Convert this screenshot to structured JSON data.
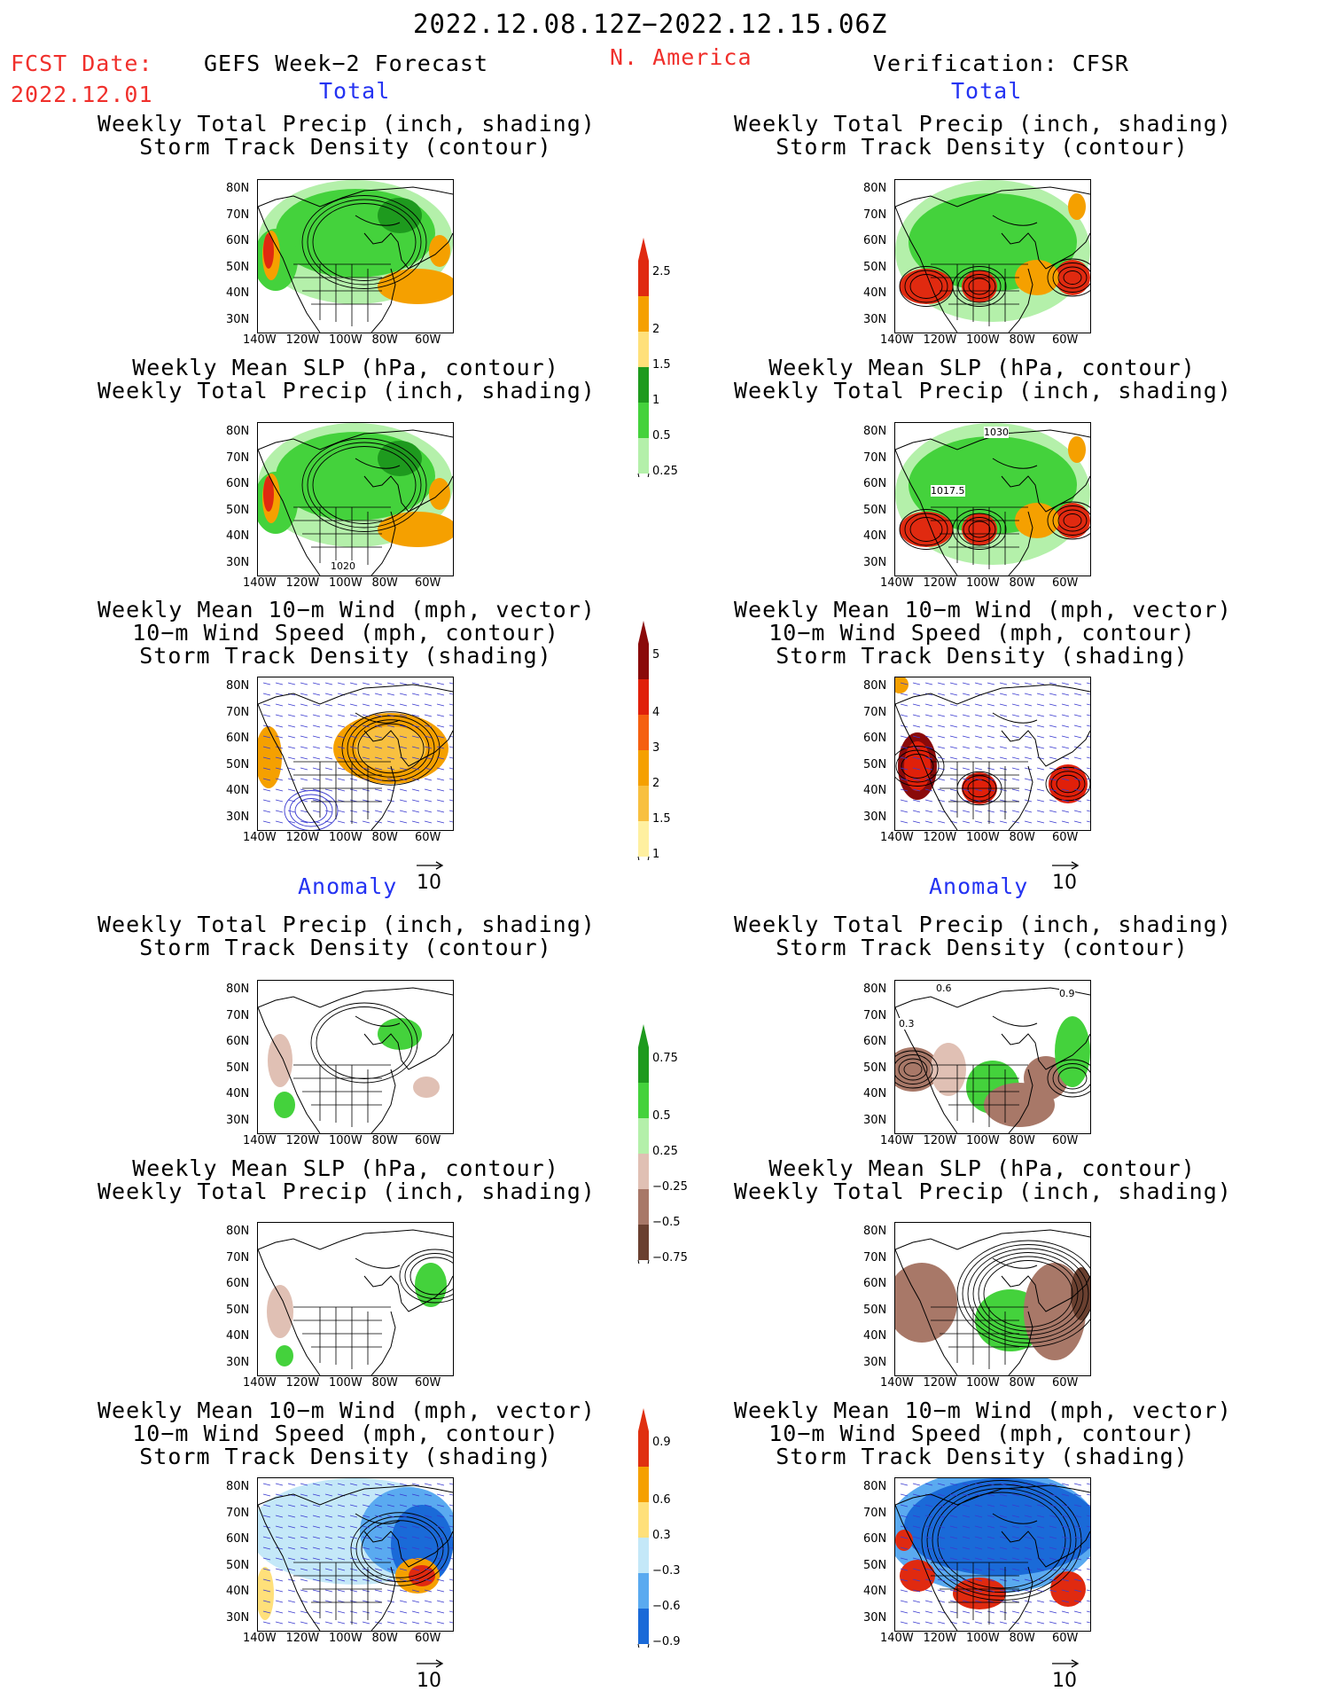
{
  "header": {
    "time_range": "2022.12.08.12Z−2022.12.15.06Z",
    "fcst_label": "FCST Date:",
    "fcst_date": "2022.12.01",
    "left_title": "GEFS Week−2 Forecast",
    "region": "N. America",
    "right_title": "Verification: CFSR",
    "total_label": "Total",
    "anomaly_label": "Anomaly"
  },
  "panels": {
    "precip_track": [
      "Weekly Total Precip (inch, shading)",
      "Storm Track Density (contour)"
    ],
    "slp_precip": [
      "Weekly Mean SLP (hPa, contour)",
      "Weekly Total Precip (inch, shading)"
    ],
    "wind_track": [
      "Weekly Mean 10−m Wind (mph, vector)",
      "10−m Wind Speed (mph, contour)",
      "Storm Track Density (shading)"
    ]
  },
  "axes": {
    "lat_labels": [
      "80N",
      "70N",
      "60N",
      "50N",
      "40N",
      "30N"
    ],
    "lon_labels": [
      "140W",
      "120W",
      "100W",
      "80W",
      "60W"
    ]
  },
  "map_annotations": {
    "fcst_slp_total": "1020",
    "cfsr_slp_total_a": "1030",
    "cfsr_slp_total_b": "1017.5",
    "cfsr_precip_anom_a": "0.6",
    "cfsr_precip_anom_b": "0.9",
    "cfsr_precip_anom_c": "0.3"
  },
  "vector_ref": "10",
  "colorbars": {
    "precip_total": [
      "2.5",
      "2",
      "1.5",
      "1",
      "0.5",
      "0.25"
    ],
    "track_total": [
      "5",
      "4",
      "3",
      "2",
      "1.5",
      "1"
    ],
    "precip_anom": [
      "0.75",
      "0.5",
      "0.25",
      "−0.25",
      "−0.5",
      "−0.75"
    ],
    "track_anom": [
      "0.9",
      "0.6",
      "0.3",
      "−0.3",
      "−0.6",
      "−0.9"
    ]
  },
  "colors": {
    "precip_total": [
      "#e02a10",
      "#f5a000",
      "#ffe07a",
      "#1e9a1e",
      "#44d23c",
      "#b4f0aa"
    ],
    "track_total": [
      "#8a0a0a",
      "#e0200a",
      "#f56010",
      "#f5a000",
      "#f8c040",
      "#fff0a0"
    ],
    "precip_anom": [
      "#1e9a1e",
      "#44d23c",
      "#b4f0aa",
      "#e0c0b4",
      "#a87868",
      "#6a4030"
    ],
    "track_anom": [
      "#e03010",
      "#f5a000",
      "#ffe07a",
      "#c4e8f8",
      "#5aaaf0",
      "#1a6ad8"
    ]
  }
}
